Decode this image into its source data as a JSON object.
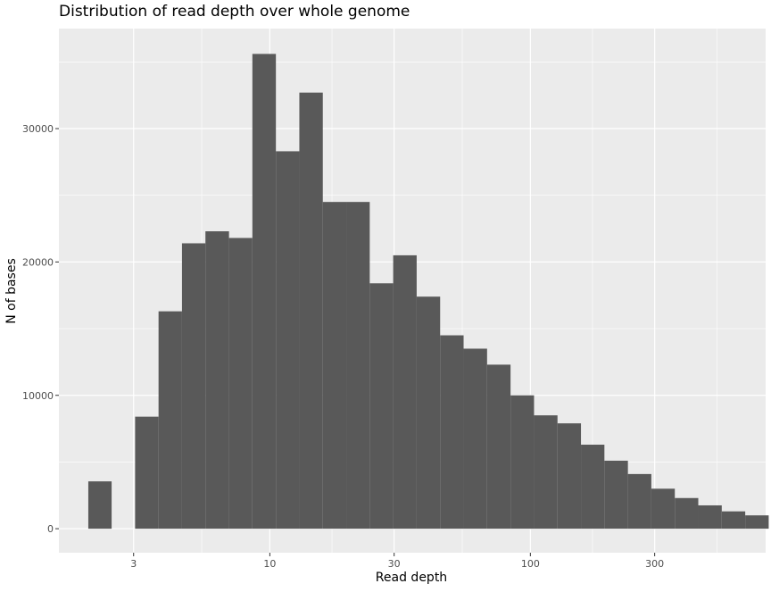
{
  "chart_data": {
    "type": "bar",
    "title": "Distribution of read depth over whole genome",
    "xlabel": "Read depth",
    "ylabel": "N of bases",
    "x_scale": "log10",
    "xlim": [
      1.55,
      800
    ],
    "ylim": [
      -1800,
      37500
    ],
    "x_ticks": [
      3,
      10,
      30,
      100,
      300
    ],
    "x_tick_labels": [
      "3",
      "10",
      "30",
      "100",
      "300"
    ],
    "y_ticks": [
      0,
      10000,
      20000,
      30000
    ],
    "y_tick_labels": [
      "0",
      "10000",
      "20000",
      "30000"
    ],
    "grid": true,
    "legend": "none",
    "bar_color": "#595959",
    "background_color": "#ebebeb",
    "bins": [
      {
        "from": 2.01,
        "to": 2.47,
        "count": 3550
      },
      {
        "from": 3.04,
        "to": 3.74,
        "count": 8400
      },
      {
        "from": 3.74,
        "to": 4.6,
        "count": 16300
      },
      {
        "from": 4.6,
        "to": 5.66,
        "count": 21400
      },
      {
        "from": 5.66,
        "to": 6.97,
        "count": 22300
      },
      {
        "from": 6.97,
        "to": 8.57,
        "count": 21800
      },
      {
        "from": 8.57,
        "to": 10.55,
        "count": 35600
      },
      {
        "from": 10.55,
        "to": 12.98,
        "count": 28300
      },
      {
        "from": 12.98,
        "to": 15.97,
        "count": 32700
      },
      {
        "from": 15.97,
        "to": 19.65,
        "count": 24500
      },
      {
        "from": 19.65,
        "to": 24.18,
        "count": 24500
      },
      {
        "from": 24.18,
        "to": 29.75,
        "count": 18400
      },
      {
        "from": 29.75,
        "to": 36.61,
        "count": 20500
      },
      {
        "from": 36.61,
        "to": 45.05,
        "count": 17400
      },
      {
        "from": 45.05,
        "to": 55.43,
        "count": 14500
      },
      {
        "from": 55.43,
        "to": 68.21,
        "count": 13500
      },
      {
        "from": 68.21,
        "to": 83.93,
        "count": 12300
      },
      {
        "from": 83.93,
        "to": 103.3,
        "count": 10000
      },
      {
        "from": 103.3,
        "to": 127.1,
        "count": 8500
      },
      {
        "from": 127.1,
        "to": 156.4,
        "count": 7900
      },
      {
        "from": 156.4,
        "to": 192.4,
        "count": 6300
      },
      {
        "from": 192.4,
        "to": 236.8,
        "count": 5100
      },
      {
        "from": 236.8,
        "to": 291.3,
        "count": 4100
      },
      {
        "from": 291.3,
        "to": 358.5,
        "count": 3000
      },
      {
        "from": 358.5,
        "to": 441.1,
        "count": 2300
      },
      {
        "from": 441.1,
        "to": 542.8,
        "count": 1750
      },
      {
        "from": 542.8,
        "to": 667.9,
        "count": 1300
      },
      {
        "from": 667.9,
        "to": 821.9,
        "count": 1000
      }
    ]
  }
}
